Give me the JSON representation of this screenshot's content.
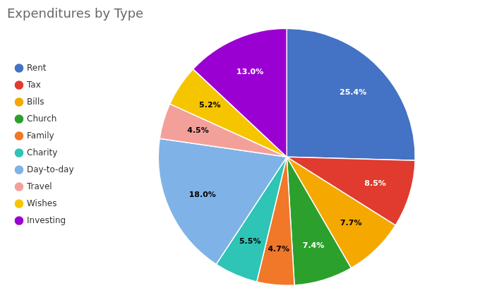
{
  "chart_data": {
    "type": "pie",
    "title": "Expenditures by Type",
    "categories": [
      "Rent",
      "Tax",
      "Bills",
      "Church",
      "Family",
      "Charity",
      "Day-to-day",
      "Travel",
      "Wishes",
      "Investing"
    ],
    "values": [
      25.4,
      8.5,
      7.7,
      7.4,
      4.7,
      5.5,
      18.0,
      4.5,
      5.2,
      13.0
    ],
    "value_labels": [
      "25.4%",
      "8.5%",
      "7.7%",
      "7.4%",
      "4.7%",
      "5.5%",
      "18.0%",
      "4.5%",
      "5.2%",
      "13.0%"
    ],
    "colors": [
      "#4472C4",
      "#E03B2E",
      "#F5A800",
      "#2CA02C",
      "#F07828",
      "#2EC4B6",
      "#7FB3E8",
      "#F4A09A",
      "#F5C500",
      "#9B00D3"
    ],
    "data_labels": true,
    "legend": "left"
  }
}
